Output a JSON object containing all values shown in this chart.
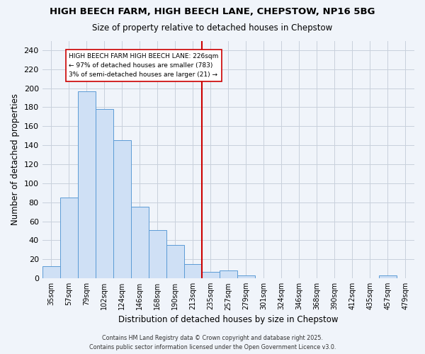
{
  "title": "HIGH BEECH FARM, HIGH BEECH LANE, CHEPSTOW, NP16 5BG",
  "subtitle": "Size of property relative to detached houses in Chepstow",
  "xlabel": "Distribution of detached houses by size in Chepstow",
  "ylabel": "Number of detached properties",
  "footer": "Contains HM Land Registry data © Crown copyright and database right 2025.\nContains public sector information licensed under the Open Government Licence v3.0.",
  "bin_labels": [
    "35sqm",
    "57sqm",
    "79sqm",
    "102sqm",
    "124sqm",
    "146sqm",
    "168sqm",
    "190sqm",
    "213sqm",
    "235sqm",
    "257sqm",
    "279sqm",
    "301sqm",
    "324sqm",
    "346sqm",
    "368sqm",
    "390sqm",
    "412sqm",
    "435sqm",
    "457sqm",
    "479sqm"
  ],
  "bar_values": [
    13,
    85,
    197,
    178,
    145,
    75,
    51,
    35,
    15,
    7,
    8,
    3,
    0,
    0,
    0,
    0,
    0,
    0,
    0,
    3,
    0
  ],
  "bar_color": "#cfe0f5",
  "bar_edge_color": "#5b9bd5",
  "vline_position": 9.0,
  "vline_color": "#cc0000",
  "annotation_text": "HIGH BEECH FARM HIGH BEECH LANE: 226sqm\n← 97% of detached houses are smaller (783)\n3% of semi-detached houses are larger (21) →",
  "annotation_box_color": "#ffffff",
  "annotation_border_color": "#cc0000",
  "ylim": [
    0,
    250
  ],
  "yticks": [
    0,
    20,
    40,
    60,
    80,
    100,
    120,
    140,
    160,
    180,
    200,
    220,
    240
  ],
  "background_color": "#f0f4fa",
  "grid_color": "#c8d0dc"
}
